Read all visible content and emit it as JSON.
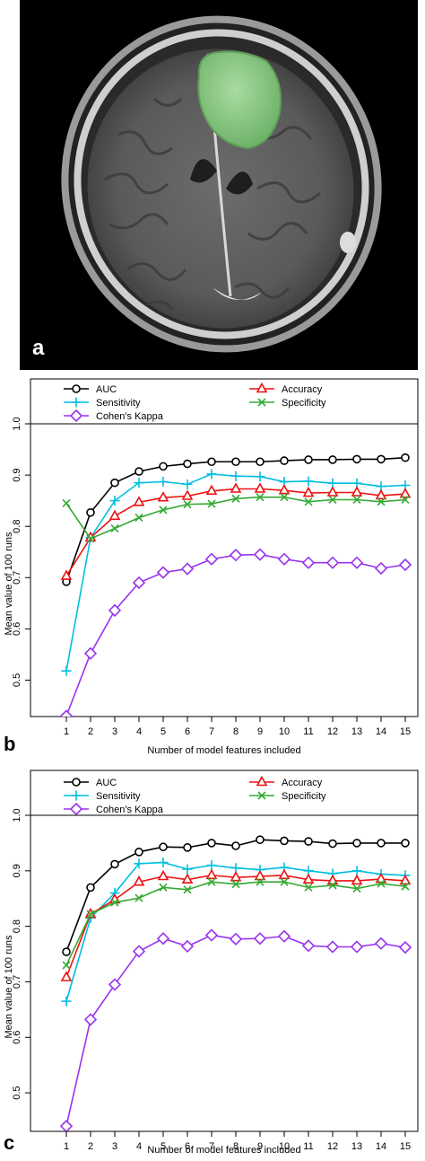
{
  "panel_a": {
    "letter": "a"
  },
  "panel_b": {
    "letter": "b"
  },
  "panel_c": {
    "letter": "c"
  },
  "chart_data": [
    {
      "type": "line",
      "panel": "b",
      "xlabel": "Number of model features included",
      "ylabel": "Mean value of 100 runs",
      "x": [
        1,
        2,
        3,
        4,
        5,
        6,
        7,
        8,
        9,
        10,
        11,
        12,
        13,
        14,
        15
      ],
      "ylim": [
        0.45,
        1.0
      ],
      "y_ticks": [
        "0.5",
        "0.6",
        "0.7",
        "0.8",
        "0.9",
        "1.0"
      ],
      "legend_position": "top",
      "reference_line": 1.0,
      "series": [
        {
          "name": "AUC",
          "color": "#000000",
          "marker": "circle",
          "values": [
            0.692,
            0.827,
            0.885,
            0.907,
            0.917,
            0.922,
            0.926,
            0.926,
            0.926,
            0.928,
            0.93,
            0.93,
            0.931,
            0.931,
            0.934
          ]
        },
        {
          "name": "Sensitivity",
          "color": "#00bfe0",
          "marker": "plus",
          "values": [
            0.518,
            0.778,
            0.85,
            0.885,
            0.887,
            0.882,
            0.902,
            0.898,
            0.897,
            0.887,
            0.888,
            0.884,
            0.884,
            0.878,
            0.88
          ]
        },
        {
          "name": "Cohen's Kappa",
          "color": "#9933ee",
          "marker": "diamond",
          "values": [
            0.43,
            0.552,
            0.636,
            0.69,
            0.71,
            0.717,
            0.736,
            0.744,
            0.745,
            0.736,
            0.729,
            0.729,
            0.729,
            0.718,
            0.725
          ]
        },
        {
          "name": "Accuracy",
          "color": "#ee1111",
          "marker": "triangle",
          "values": [
            0.703,
            0.778,
            0.82,
            0.847,
            0.856,
            0.859,
            0.869,
            0.873,
            0.873,
            0.87,
            0.865,
            0.866,
            0.866,
            0.86,
            0.863
          ]
        },
        {
          "name": "Specificity",
          "color": "#33aa33",
          "marker": "x",
          "values": [
            0.845,
            0.776,
            0.796,
            0.817,
            0.832,
            0.843,
            0.844,
            0.854,
            0.857,
            0.857,
            0.848,
            0.852,
            0.852,
            0.848,
            0.852
          ]
        }
      ]
    },
    {
      "type": "line",
      "panel": "c",
      "xlabel": "Number of model features included",
      "ylabel": "Mean value of 100 runs",
      "x": [
        1,
        2,
        3,
        4,
        5,
        6,
        7,
        8,
        9,
        10,
        11,
        12,
        13,
        14,
        15
      ],
      "ylim": [
        0.45,
        1.0
      ],
      "y_ticks": [
        "0.5",
        "0.6",
        "0.7",
        "0.8",
        "0.9",
        "1.0"
      ],
      "legend_position": "top",
      "reference_line": 1.0,
      "series": [
        {
          "name": "AUC",
          "color": "#000000",
          "marker": "circle",
          "values": [
            0.754,
            0.87,
            0.912,
            0.934,
            0.943,
            0.942,
            0.95,
            0.945,
            0.956,
            0.954,
            0.953,
            0.949,
            0.95,
            0.95,
            0.95
          ]
        },
        {
          "name": "Sensitivity",
          "color": "#00bfe0",
          "marker": "plus",
          "values": [
            0.665,
            0.815,
            0.86,
            0.913,
            0.915,
            0.903,
            0.91,
            0.905,
            0.902,
            0.906,
            0.9,
            0.895,
            0.9,
            0.894,
            0.892
          ]
        },
        {
          "name": "Cohen's Kappa",
          "color": "#9933ee",
          "marker": "diamond",
          "values": [
            0.44,
            0.632,
            0.695,
            0.755,
            0.778,
            0.764,
            0.784,
            0.777,
            0.778,
            0.782,
            0.765,
            0.763,
            0.763,
            0.769,
            0.762
          ]
        },
        {
          "name": "Accuracy",
          "color": "#ee1111",
          "marker": "triangle",
          "values": [
            0.708,
            0.822,
            0.848,
            0.88,
            0.89,
            0.884,
            0.892,
            0.888,
            0.89,
            0.892,
            0.884,
            0.882,
            0.882,
            0.885,
            0.882
          ]
        },
        {
          "name": "Specificity",
          "color": "#33aa33",
          "marker": "x",
          "values": [
            0.73,
            0.822,
            0.843,
            0.851,
            0.87,
            0.866,
            0.88,
            0.876,
            0.88,
            0.88,
            0.87,
            0.874,
            0.868,
            0.877,
            0.872
          ]
        }
      ]
    }
  ]
}
